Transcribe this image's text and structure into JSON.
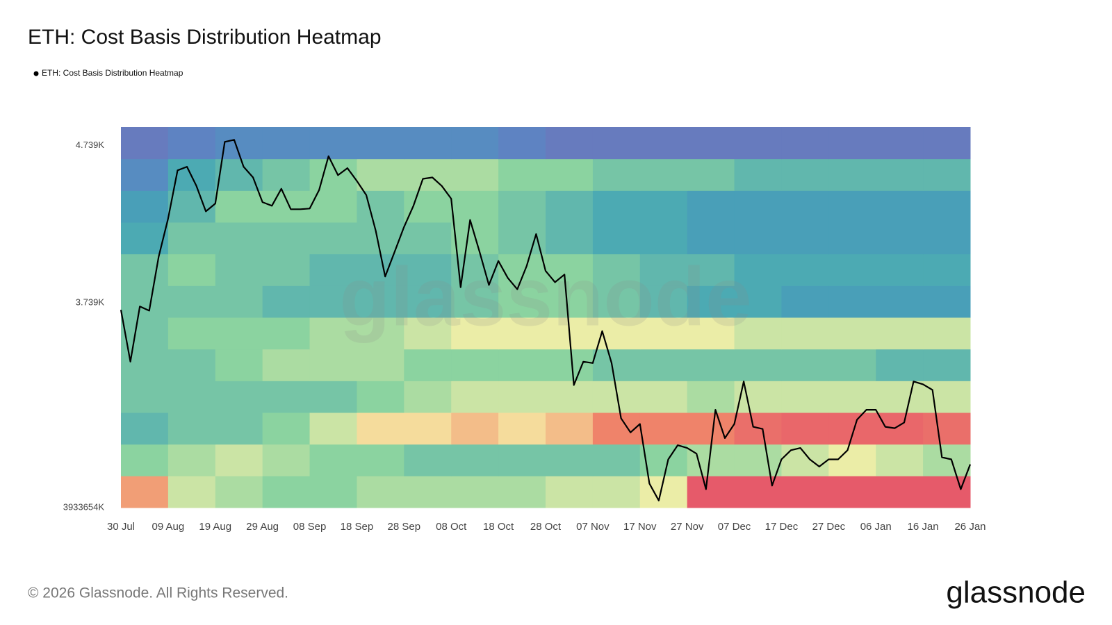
{
  "chart_data": {
    "type": "heatmap",
    "title": "ETH: Cost Basis Distribution Heatmap",
    "watermark": "glassnode",
    "footer": "© 2026 Glassnode. All Rights Reserved.",
    "logo": "glassnode",
    "categories": [
      "30 Jul",
      null,
      null,
      null,
      null,
      "09 Aug",
      null,
      null,
      null,
      null,
      "19 Aug",
      null,
      null,
      null,
      null,
      "29 Aug",
      null,
      null,
      null,
      null,
      "08 Sep",
      null,
      null,
      null,
      null,
      "18 Sep",
      null,
      null,
      null,
      null,
      "28 Sep",
      null,
      null,
      null,
      null,
      "08 Oct",
      null,
      null,
      null,
      null,
      "18 Oct",
      null,
      null,
      null,
      null,
      "28 Oct",
      null,
      null,
      null,
      null,
      "07 Nov",
      null,
      null,
      null,
      null,
      "17 Nov",
      null,
      null,
      null,
      null,
      "27 Nov",
      null,
      null,
      null,
      null,
      "07 Dec",
      null,
      null,
      null,
      null,
      "17 Dec",
      null,
      null,
      null,
      null,
      "27 Dec",
      null,
      null,
      null,
      null,
      "06 Jan",
      null,
      null,
      null,
      null,
      "16 Jan",
      null,
      null,
      null,
      null,
      "26 Jan"
    ],
    "series": [
      {
        "name": "ETH: Cost Basis Distribution Heatmap",
        "color": "#000000",
        "values": [
          3694,
          3365,
          3716,
          3689,
          4032,
          4275,
          4581,
          4604,
          4482,
          4320,
          4370,
          4762,
          4775,
          4604,
          4536,
          4379,
          4356,
          4464,
          4334,
          4334,
          4338,
          4455,
          4671,
          4550,
          4595,
          4514,
          4424,
          4198,
          3906,
          4063,
          4221,
          4356,
          4527,
          4536,
          4482,
          4401,
          3838,
          4266,
          4063,
          3852,
          4005,
          3897,
          3825,
          3973,
          4176,
          3942,
          3870,
          3919,
          3216,
          3365,
          3356,
          3559,
          3356,
          3005,
          2915,
          2969,
          2590,
          2482,
          2744,
          2834,
          2816,
          2780,
          2554,
          3059,
          2879,
          2969,
          3239,
          2951,
          2937,
          2577,
          2744,
          2802,
          2816,
          2744,
          2698,
          2744,
          2744,
          2802,
          2996,
          3059,
          3059,
          2951,
          2942,
          2978,
          3239,
          3221,
          3185,
          2757,
          2744,
          2554,
          2712
        ]
      }
    ],
    "heatmap": {
      "colorscale": [
        "#7a6ab4",
        "#5b86c4",
        "#45a5b5",
        "#8bd3a0",
        "#f6f0a8",
        "#f08a6a",
        "#e2466a"
      ],
      "z": [
        [
          0.8,
          0.6,
          0.55,
          0.5,
          0.5,
          0.55,
          0.55,
          0.55,
          0.55,
          0.6,
          0.6,
          0.65,
          0.95,
          0.95,
          0.95,
          0.95,
          0.95,
          0.95
        ],
        [
          0.5,
          0.55,
          0.6,
          0.55,
          0.5,
          0.5,
          0.45,
          0.45,
          0.45,
          0.45,
          0.45,
          0.5,
          0.55,
          0.55,
          0.6,
          0.65,
          0.6,
          0.55
        ],
        [
          0.4,
          0.45,
          0.45,
          0.5,
          0.6,
          0.7,
          0.7,
          0.75,
          0.7,
          0.75,
          0.85,
          0.85,
          0.85,
          0.9,
          0.92,
          0.92,
          0.92,
          0.9
        ],
        [
          0.45,
          0.45,
          0.45,
          0.45,
          0.45,
          0.5,
          0.55,
          0.6,
          0.6,
          0.6,
          0.6,
          0.6,
          0.55,
          0.6,
          0.6,
          0.6,
          0.6,
          0.6
        ],
        [
          0.45,
          0.45,
          0.5,
          0.55,
          0.55,
          0.55,
          0.5,
          0.5,
          0.5,
          0.5,
          0.45,
          0.45,
          0.45,
          0.45,
          0.45,
          0.45,
          0.4,
          0.4
        ],
        [
          0.45,
          0.5,
          0.5,
          0.5,
          0.55,
          0.55,
          0.6,
          0.65,
          0.65,
          0.65,
          0.65,
          0.65,
          0.65,
          0.6,
          0.6,
          0.6,
          0.6,
          0.6
        ],
        [
          0.45,
          0.45,
          0.45,
          0.4,
          0.4,
          0.4,
          0.4,
          0.45,
          0.5,
          0.5,
          0.45,
          0.4,
          0.35,
          0.35,
          0.3,
          0.3,
          0.3,
          0.3
        ],
        [
          0.45,
          0.5,
          0.45,
          0.45,
          0.4,
          0.4,
          0.4,
          0.45,
          0.5,
          0.5,
          0.45,
          0.4,
          0.4,
          0.35,
          0.35,
          0.35,
          0.35,
          0.35
        ],
        [
          0.35,
          0.45,
          0.45,
          0.45,
          0.45,
          0.45,
          0.45,
          0.5,
          0.45,
          0.4,
          0.35,
          0.35,
          0.3,
          0.3,
          0.3,
          0.3,
          0.3,
          0.3
        ],
        [
          0.3,
          0.4,
          0.5,
          0.5,
          0.5,
          0.45,
          0.5,
          0.5,
          0.45,
          0.4,
          0.35,
          0.35,
          0.3,
          0.3,
          0.3,
          0.3,
          0.3,
          0.3
        ],
        [
          0.2,
          0.35,
          0.4,
          0.45,
          0.5,
          0.55,
          0.55,
          0.55,
          0.5,
          0.5,
          0.45,
          0.45,
          0.45,
          0.4,
          0.4,
          0.4,
          0.4,
          0.4
        ],
        [
          0.1,
          0.15,
          0.2,
          0.2,
          0.2,
          0.2,
          0.2,
          0.2,
          0.15,
          0.1,
          0.1,
          0.1,
          0.1,
          0.1,
          0.1,
          0.1,
          0.1,
          0.1
        ]
      ]
    },
    "ylim": [
      2437,
      4856
    ],
    "yticks": [
      {
        "value": 4739,
        "label": "4.739K"
      },
      {
        "value": 3739,
        "label": "3.739K"
      }
    ],
    "y_min_label": "3933654K",
    "grid": false
  }
}
